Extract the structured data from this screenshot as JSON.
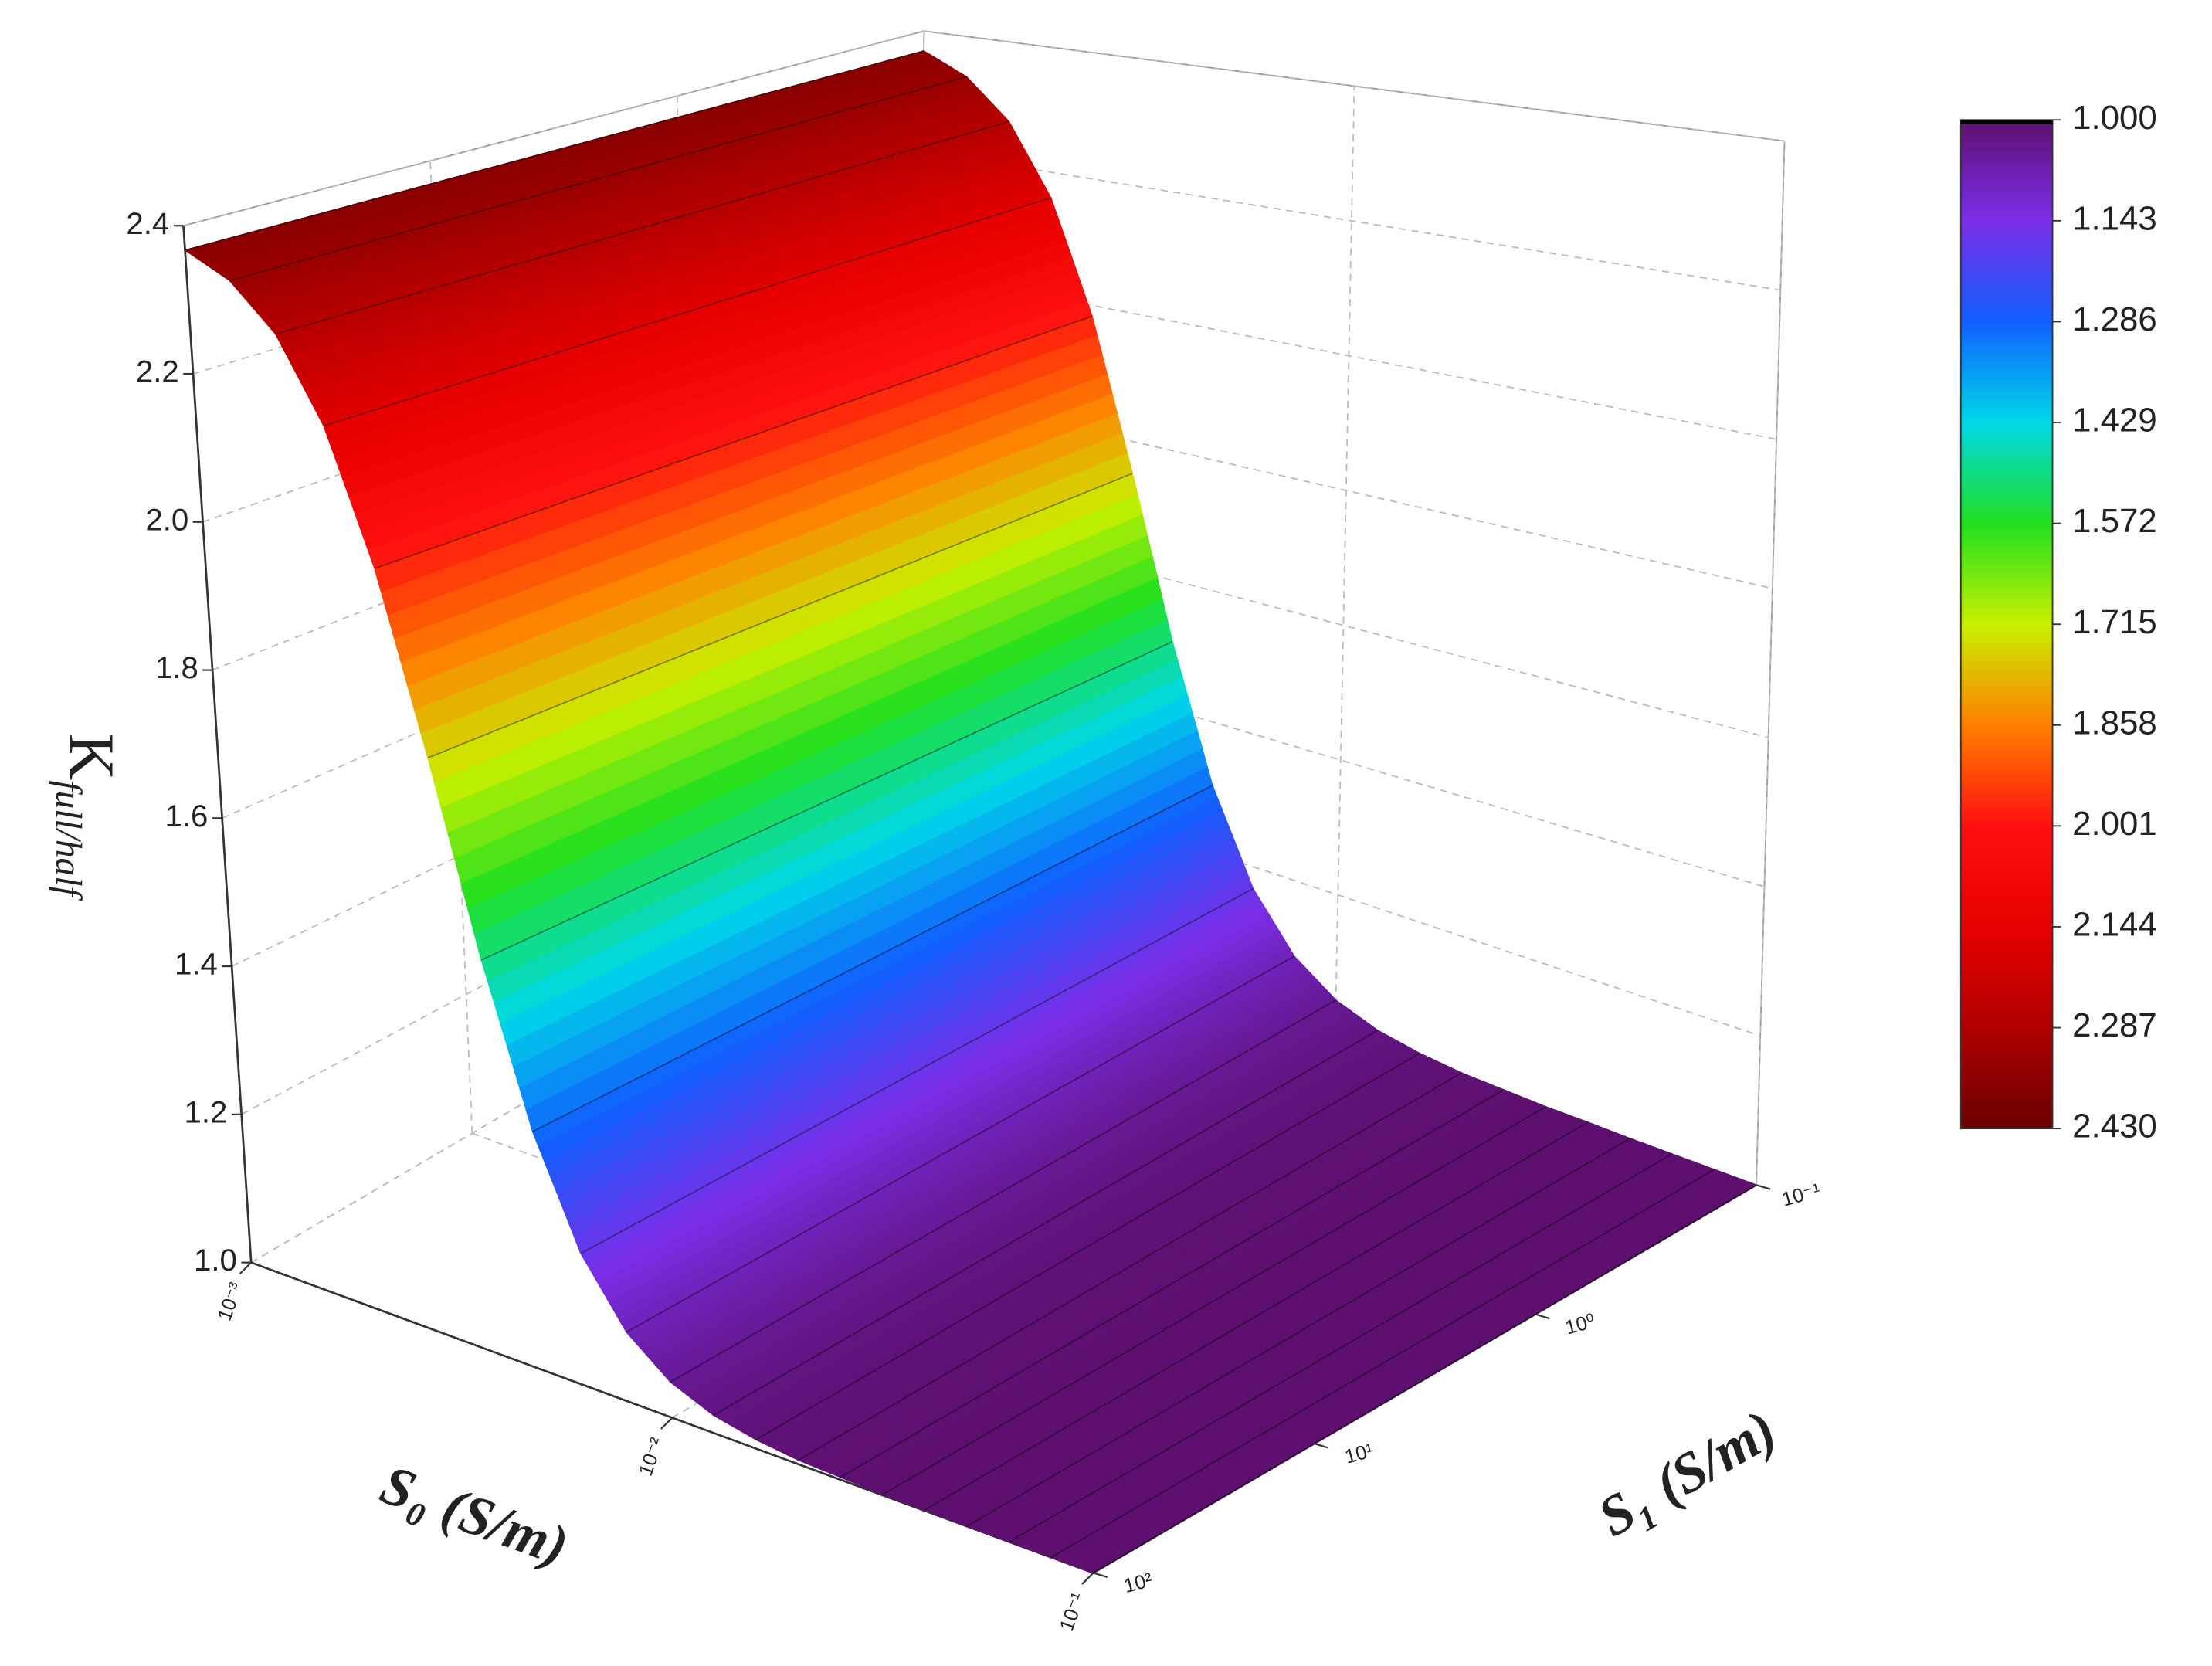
{
  "chart_data": {
    "type": "surface",
    "zlabel": "K",
    "zlabel_sub": "full/half",
    "xlabel": "S₀ (S/m)",
    "ylabel": "S₁ (S/m)",
    "xlim": [
      -3,
      -1
    ],
    "xticks": [
      {
        "value": -3,
        "label": "10⁻³"
      },
      {
        "value": -2,
        "label": "10⁻²"
      },
      {
        "value": -1,
        "label": "10⁻¹"
      }
    ],
    "ylim": [
      2,
      -1
    ],
    "yticks": [
      {
        "value": -1,
        "label": "10⁻¹"
      },
      {
        "value": 0,
        "label": "10⁰"
      },
      {
        "value": 1,
        "label": "10¹"
      },
      {
        "value": 2,
        "label": "10²"
      }
    ],
    "zlim": [
      1,
      2.4
    ],
    "zticks": [
      {
        "value": 1,
        "label": "1.0"
      },
      1.2,
      1.4,
      1.6,
      1.8,
      {
        "value": 2,
        "label": "2.0"
      },
      2.2,
      2.4
    ],
    "x": [
      -3,
      -2.9,
      -2.8,
      -2.7,
      -2.6,
      -2.5,
      -2.4,
      -2.3,
      -2.2,
      -2.1,
      -2,
      -1.9,
      -1.8,
      -1.7,
      -1.6,
      -1.5,
      -1.4,
      -1.3,
      -1.2,
      -1.1,
      -1
    ],
    "values": [
      2.367,
      2.334,
      2.271,
      2.159,
      1.983,
      1.75,
      1.505,
      1.303,
      1.167,
      1.087,
      1.044,
      1.022,
      1.011,
      1.005,
      1.003,
      1.001,
      1.001,
      1,
      1,
      1,
      1
    ],
    "grid": true,
    "colorbar": {
      "levels": [
        {
          "value": 1,
          "label": "1.000"
        },
        1.143,
        1.286,
        1.429,
        1.572,
        1.715,
        1.858,
        2.001,
        2.144,
        2.287,
        {
          "value": 2.43,
          "label": "2.430"
        }
      ],
      "colors": [
        "#5e1070",
        "#7b2ee8",
        "#1060ff",
        "#00d8e8",
        "#20e020",
        "#c8f000",
        "#ff8000",
        "#ff1010",
        "#e80000",
        "#b00000",
        "#6a0000"
      ]
    }
  }
}
